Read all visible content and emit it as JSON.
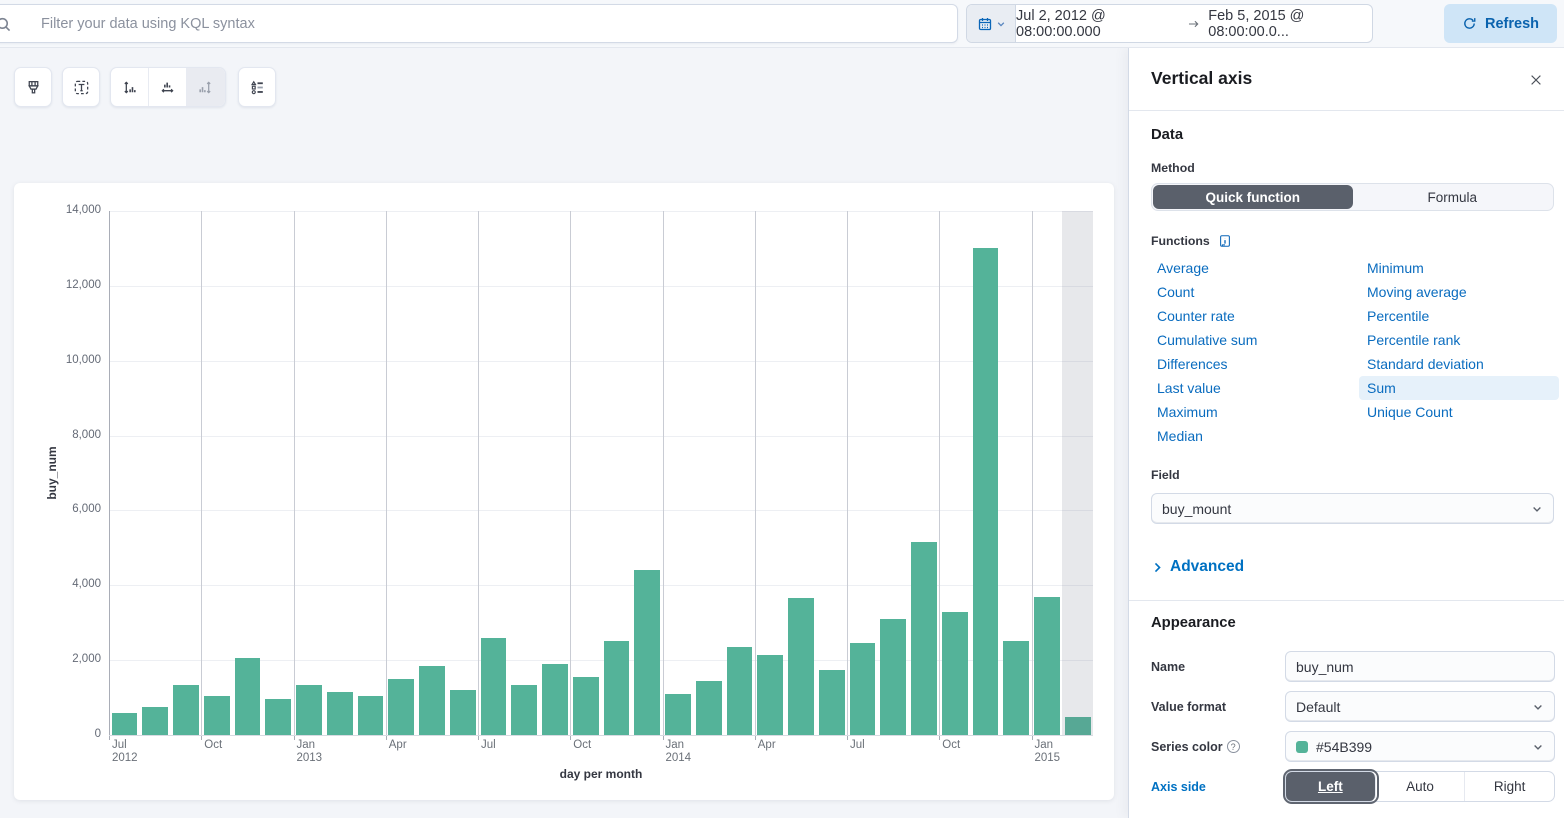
{
  "topbar": {
    "query_placeholder": "Filter your data using KQL syntax",
    "date_start": "Jul 2, 2012 @ 08:00:00.000",
    "date_end": "Feb 5, 2015 @ 08:00:00.0...",
    "refresh_label": "Refresh"
  },
  "toolbar": {
    "buttons": [
      "visual-options-paintbrush",
      "text-options",
      "left-axis",
      "bottom-axis",
      "right-axis-disabled",
      "legend"
    ]
  },
  "panel": {
    "title": "Vertical axis",
    "data_section": {
      "heading": "Data",
      "method_label": "Method",
      "method_options": [
        "Quick function",
        "Formula"
      ],
      "method_selected": "Quick function",
      "functions_label": "Functions",
      "functions_left": [
        "Average",
        "Count",
        "Counter rate",
        "Cumulative sum",
        "Differences",
        "Last value",
        "Maximum",
        "Median"
      ],
      "functions_right": [
        "Minimum",
        "Moving average",
        "Percentile",
        "Percentile rank",
        "Standard deviation",
        "Sum",
        "Unique Count"
      ],
      "selected_function": "Sum",
      "field_label": "Field",
      "field_value": "buy_mount",
      "advanced_label": "Advanced"
    },
    "appearance_section": {
      "heading": "Appearance",
      "name_label": "Name",
      "name_value": "buy_num",
      "value_format_label": "Value format",
      "value_format_value": "Default",
      "series_color_label": "Series color",
      "series_color_value": "#54B399",
      "axis_side_label": "Axis side",
      "axis_side_options": [
        "Left",
        "Auto",
        "Right"
      ],
      "axis_side_selected": "Left"
    }
  },
  "chart_data": {
    "type": "bar",
    "title": "",
    "xlabel": "day per month",
    "ylabel": "buy_num",
    "ylim": [
      0,
      14000
    ],
    "grid": true,
    "legend": "none",
    "series_color": "#54B399",
    "y_ticks": [
      {
        "value": 0,
        "label": "0"
      },
      {
        "value": 2000,
        "label": "2,000"
      },
      {
        "value": 4000,
        "label": "4,000"
      },
      {
        "value": 6000,
        "label": "6,000"
      },
      {
        "value": 8000,
        "label": "8,000"
      },
      {
        "value": 10000,
        "label": "10,000"
      },
      {
        "value": 12000,
        "label": "12,000"
      },
      {
        "value": 14000,
        "label": "14,000"
      }
    ],
    "categories": [
      "Jul 2012",
      "Aug 2012",
      "Sep 2012",
      "Oct 2012",
      "Nov 2012",
      "Dec 2012",
      "Jan 2013",
      "Feb 2013",
      "Mar 2013",
      "Apr 2013",
      "May 2013",
      "Jun 2013",
      "Jul 2013",
      "Aug 2013",
      "Sep 2013",
      "Oct 2013",
      "Nov 2013",
      "Dec 2013",
      "Jan 2014",
      "Feb 2014",
      "Mar 2014",
      "Apr 2014",
      "May 2014",
      "Jun 2014",
      "Jul 2014",
      "Aug 2014",
      "Sep 2014",
      "Oct 2014",
      "Nov 2014",
      "Dec 2014",
      "Jan 2015",
      "Feb 2015"
    ],
    "values": [
      600,
      750,
      1350,
      1050,
      2050,
      950,
      1350,
      1150,
      1050,
      1500,
      1850,
      1200,
      2600,
      1350,
      1900,
      1550,
      2500,
      4400,
      1100,
      1450,
      2350,
      2150,
      3650,
      1750,
      2450,
      3100,
      5150,
      3300,
      13000,
      2500,
      3700,
      480
    ],
    "x_ticks": [
      {
        "index": 0,
        "line1": "Jul",
        "line2": "2012"
      },
      {
        "index": 3,
        "line1": "Oct",
        "line2": ""
      },
      {
        "index": 6,
        "line1": "Jan",
        "line2": "2013"
      },
      {
        "index": 9,
        "line1": "Apr",
        "line2": ""
      },
      {
        "index": 12,
        "line1": "Jul",
        "line2": ""
      },
      {
        "index": 15,
        "line1": "Oct",
        "line2": ""
      },
      {
        "index": 18,
        "line1": "Jan",
        "line2": "2014"
      },
      {
        "index": 21,
        "line1": "Apr",
        "line2": ""
      },
      {
        "index": 24,
        "line1": "Jul",
        "line2": ""
      },
      {
        "index": 27,
        "line1": "Oct",
        "line2": ""
      },
      {
        "index": 30,
        "line1": "Jan",
        "line2": "2015"
      }
    ],
    "partial_bucket_index": 31
  }
}
